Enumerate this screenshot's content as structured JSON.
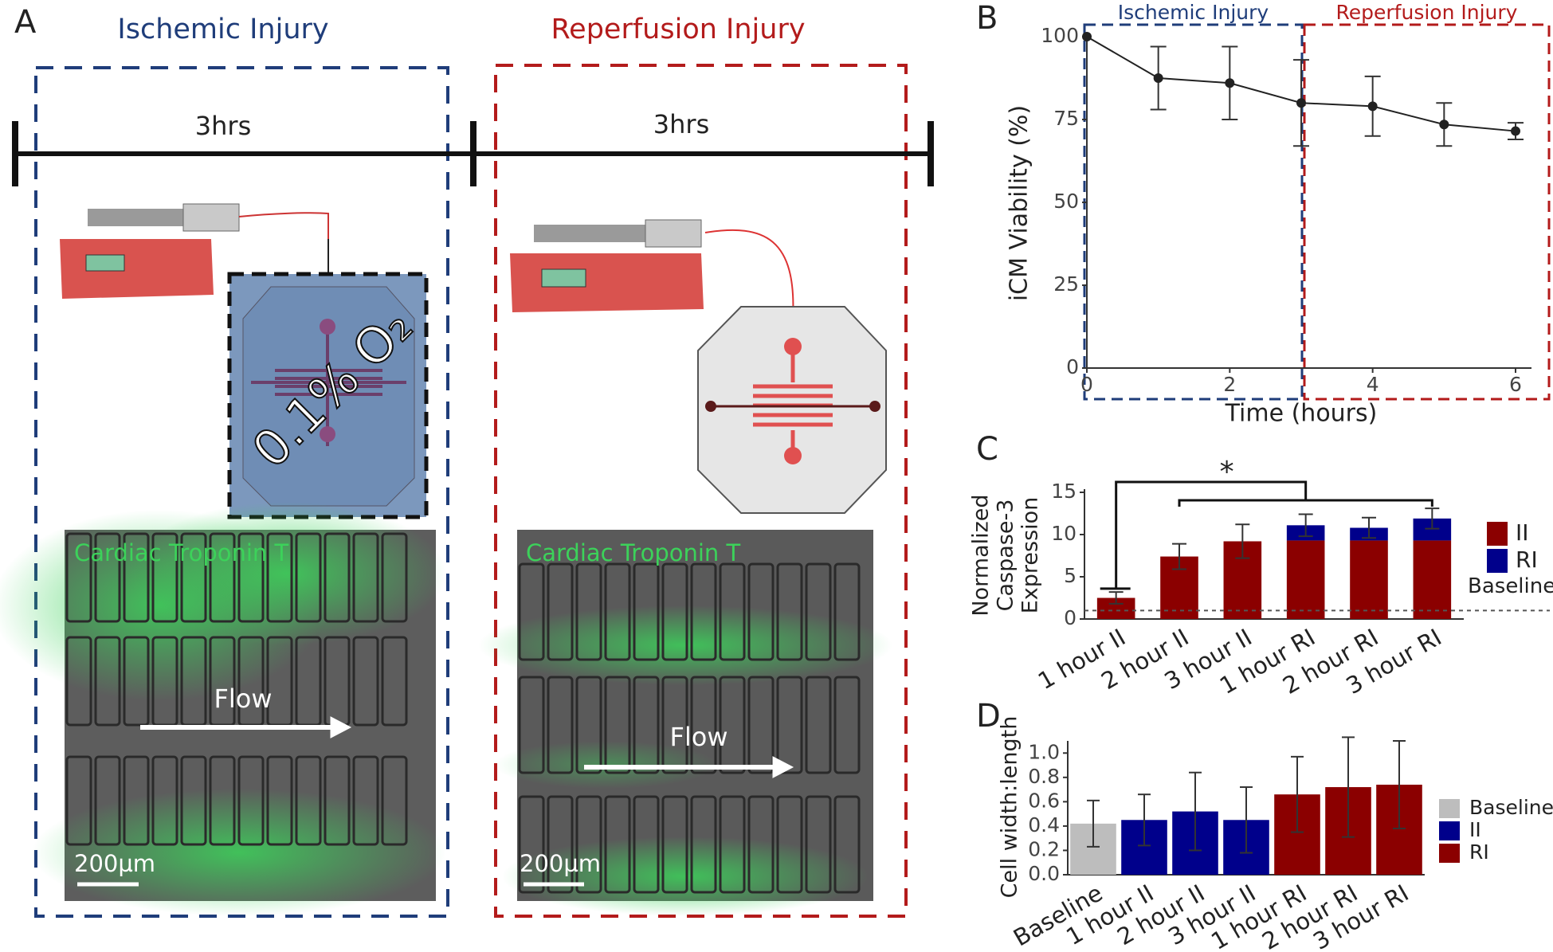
{
  "panel_a": {
    "label": "A",
    "ischemic_title": "Ischemic Injury",
    "reperfusion_title": "Reperfusion Injury",
    "duration_1": "3hrs",
    "duration_2": "3hrs",
    "oxygen_label": "0.1% O₂",
    "stain_1": "Cardiac Troponin T",
    "stain_2": "Cardiac Troponin T",
    "flow_1": "Flow",
    "flow_2": "Flow",
    "scale_1": "200µm",
    "scale_2": "200µm"
  },
  "chart_data": [
    {
      "type": "line",
      "label": "B",
      "xlabel": "Time (hours)",
      "ylabel": "iCM Viability (%)",
      "x": [
        0,
        1,
        2,
        3,
        4,
        5,
        6
      ],
      "series": [
        {
          "color": "#222222",
          "values": [
            100,
            87.5,
            86,
            80,
            79,
            73.5,
            71.5
          ],
          "errors": [
            null,
            9.5,
            11,
            13,
            9,
            6.5,
            2.5
          ]
        }
      ],
      "xlim": [
        0,
        6
      ],
      "ylim": [
        0,
        100
      ],
      "xticks": [
        0,
        2,
        4,
        6
      ],
      "yticks": [
        0,
        25,
        50,
        75,
        100
      ],
      "regions": [
        {
          "label": "Ischemic Injury",
          "color": "#1f3d7a",
          "xlim": [
            0,
            3
          ]
        },
        {
          "label": "Reperfusion Injury",
          "color": "#b31b1b",
          "xlim": [
            3,
            6
          ]
        }
      ]
    },
    {
      "type": "stacked_bar",
      "label": "C",
      "ylabel_lines": [
        "Normalized",
        "Caspase-3",
        "Expression"
      ],
      "categories": [
        "1 hour II",
        "2 hour II",
        "3 hour II",
        "1 hour RI",
        "2 hour RI",
        "3 hour RI"
      ],
      "series": [
        {
          "name": "II",
          "color": "#8b0000",
          "values": [
            2.5,
            7.4,
            9.2,
            9.3,
            9.3,
            9.3
          ]
        },
        {
          "name": "RI",
          "color": "#00008b",
          "values": [
            null,
            null,
            null,
            1.8,
            1.5,
            2.6
          ]
        }
      ],
      "errors": [
        0.7,
        1.5,
        2,
        1.3,
        1.2,
        1.2
      ],
      "baseline": {
        "label": "Baseline",
        "value": 1
      },
      "annotation": "*",
      "ylim": [
        0,
        15
      ],
      "yticks": [
        0,
        5,
        10,
        15
      ]
    },
    {
      "type": "bar",
      "label": "D",
      "ylabel": "Cell width:length",
      "categories": [
        "Baseline",
        "1 hour II",
        "2 hour II",
        "3 hour II",
        "1 hour RI",
        "2 hour RI",
        "3 hour RI"
      ],
      "series": [
        {
          "name": "Baseline",
          "color": "#bdbdbd",
          "values": [
            0.42,
            null,
            null,
            null,
            null,
            null,
            null
          ],
          "errors": [
            0.19,
            null,
            null,
            null,
            null,
            null,
            null
          ]
        },
        {
          "name": "II",
          "color": "#00008b",
          "values": [
            null,
            0.45,
            0.52,
            0.45,
            null,
            null,
            null
          ],
          "errors": [
            null,
            0.21,
            0.32,
            0.27,
            null,
            null,
            null
          ]
        },
        {
          "name": "RI",
          "color": "#8b0000",
          "values": [
            null,
            null,
            null,
            null,
            0.66,
            0.72,
            0.74
          ],
          "errors": [
            null,
            null,
            null,
            null,
            0.31,
            0.41,
            0.36
          ]
        }
      ],
      "ylim": [
        0,
        1.1
      ],
      "yticks": [
        {
          "value": 0,
          "label": "0.0"
        },
        0.2,
        0.4,
        0.6,
        0.8,
        {
          "value": 1,
          "label": "1.0"
        }
      ]
    }
  ]
}
